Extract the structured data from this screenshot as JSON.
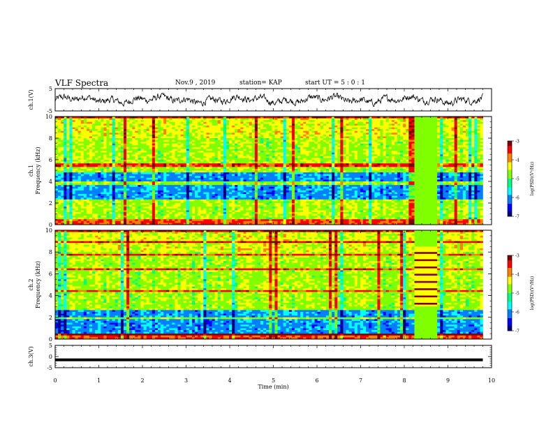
{
  "header": {
    "title": "VLF Spectra",
    "date": "Nov.9 , 2019",
    "station": "station= KAP",
    "start_time": "start UT = 5 : 0 : 1"
  },
  "colors": {
    "spectrogram_scale": [
      "#00007f",
      "#0000ff",
      "#0080ff",
      "#00ffff",
      "#00ff80",
      "#80ff00",
      "#ffff00",
      "#ff8000",
      "#ff0000",
      "#7f0000"
    ],
    "waveform": "#000000"
  },
  "chart_data": [
    {
      "type": "line",
      "panel": "ch1-waveform",
      "ylabel": "ch.1(V)",
      "ylim": [
        -5,
        5
      ],
      "yticks": [
        "5",
        "-5"
      ],
      "xlim": [
        0,
        10
      ],
      "series": [
        {
          "x": [
            0,
            9.8
          ],
          "values_range": [
            -3,
            3
          ],
          "color": "#000000"
        }
      ]
    },
    {
      "type": "heatmap",
      "panel": "ch1-spectrogram",
      "ylabel": "ch.1 Frequency (kHz)",
      "ylim": [
        0,
        10
      ],
      "yticks": [
        "0",
        "2",
        "4",
        "6",
        "8",
        "10"
      ],
      "xlim": [
        0,
        10
      ],
      "colorbar": {
        "label": "log(PSD)(V²/Hz)",
        "range": [
          -7,
          -3
        ],
        "ticks": [
          "-3",
          "-4",
          "-5",
          "-6",
          "-7"
        ]
      },
      "features": {
        "low_power_bands_khz": [
          [
            2.4,
            3.6
          ],
          [
            4.0,
            4.9
          ]
        ],
        "gap_minutes": [
          8.2,
          8.75
        ]
      }
    },
    {
      "type": "heatmap",
      "panel": "ch2-spectrogram",
      "ylabel": "ch.2 Frequency (kHz)",
      "ylim": [
        0,
        10
      ],
      "yticks": [
        "0",
        "2",
        "4",
        "6",
        "8",
        "10"
      ],
      "xlim": [
        0,
        10
      ],
      "colorbar": {
        "label": "log(PSD)(V²/Hz)",
        "range": [
          -7,
          -3
        ],
        "ticks": [
          "-3",
          "-4",
          "-5",
          "-6",
          "-7"
        ]
      },
      "features": {
        "low_power_bands_khz": [
          [
            0.4,
            1.9
          ],
          [
            2.0,
            2.6
          ]
        ],
        "gap_minutes": [
          8.2,
          8.75
        ]
      }
    },
    {
      "type": "line",
      "panel": "ch3-waveform",
      "ylabel": "ch.3(V)",
      "ylim": [
        -5,
        5
      ],
      "yticks": [
        "5",
        "0",
        "-5"
      ],
      "xlim": [
        0,
        10
      ],
      "series": [
        {
          "x": [
            0,
            9.8
          ],
          "y": [
            -1.5,
            -1.5
          ],
          "color": "#000000"
        }
      ]
    }
  ],
  "xaxis": {
    "label": "Time (min)",
    "ticks": [
      "0",
      "1",
      "2",
      "3",
      "4",
      "5",
      "6",
      "7",
      "8",
      "9",
      "10"
    ]
  }
}
